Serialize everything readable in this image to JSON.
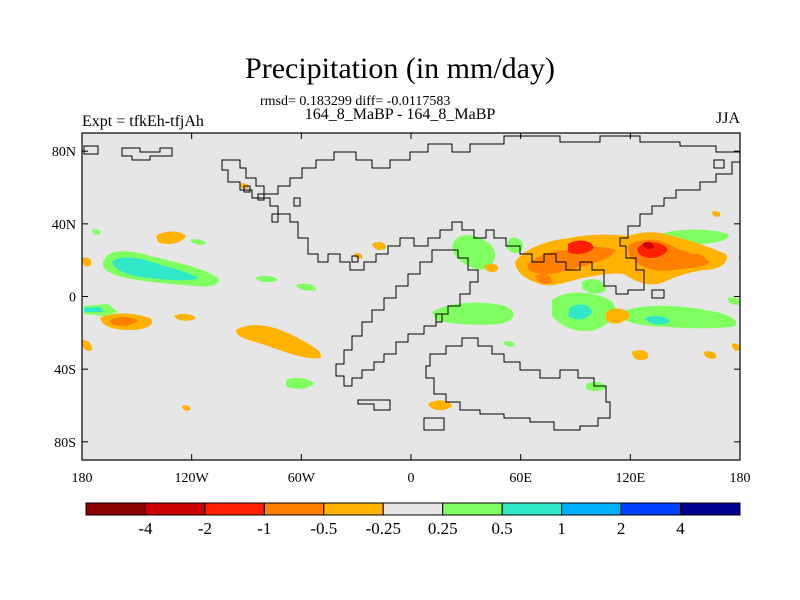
{
  "header": {
    "title": "Precipitation (in mm/day)",
    "stats": "rmsd= 0.183299 diff= -0.0117583",
    "subtitle": "164_8_MaBP - 164_8_MaBP",
    "left_label": "Expt = tfkEh-tfjAh",
    "right_label": "JJA"
  },
  "map": {
    "lat_ticks": [
      {
        "label": "80N",
        "value": 80
      },
      {
        "label": "40N",
        "value": 40
      },
      {
        "label": "0",
        "value": 0
      },
      {
        "label": "40S",
        "value": -40
      },
      {
        "label": "80S",
        "value": -80
      }
    ],
    "lon_ticks": [
      {
        "label": "180",
        "value": -180
      },
      {
        "label": "120W",
        "value": -120
      },
      {
        "label": "60W",
        "value": -60
      },
      {
        "label": "0",
        "value": 0
      },
      {
        "label": "60E",
        "value": 60
      },
      {
        "label": "120E",
        "value": 120
      },
      {
        "label": "180",
        "value": 180
      }
    ],
    "background_color": "#e6e6e6"
  },
  "colorbar": {
    "colors": [
      "#8b0000",
      "#cc0000",
      "#ff2000",
      "#ff7f00",
      "#ffb300",
      "#e6e6e6",
      "#80ff60",
      "#30e8c8",
      "#00b0ff",
      "#0040ff",
      "#000090"
    ],
    "labels": [
      "-4",
      "-2",
      "-1",
      "-0.5",
      "-0.25",
      "0.25",
      "0.5",
      "1",
      "2",
      "4"
    ]
  }
}
